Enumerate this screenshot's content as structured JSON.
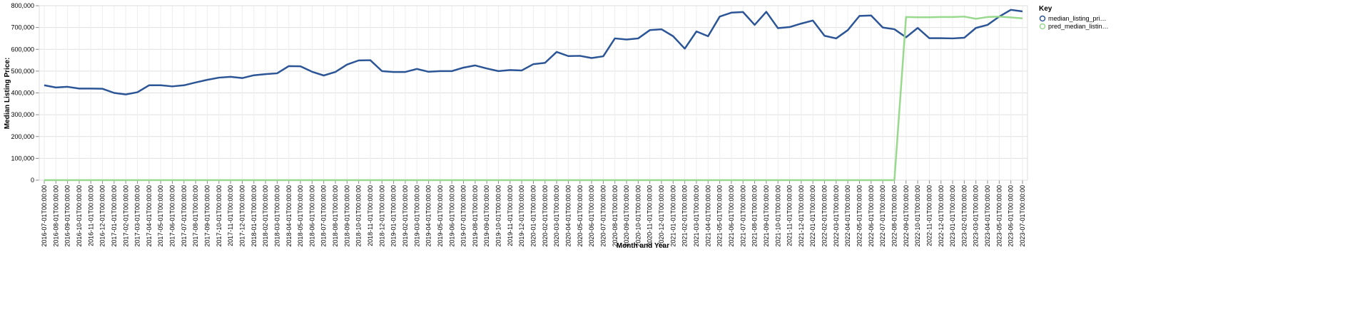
{
  "chart_data": {
    "type": "line",
    "x_label": "Month and Year",
    "y_label": "Median Listing Price:",
    "legend_title": "Key",
    "legend_position": "right",
    "grid": true,
    "categories": [
      "2016-07-01T00:00:00",
      "2016-08-01T00:00:00",
      "2016-09-01T00:00:00",
      "2016-10-01T00:00:00",
      "2016-11-01T00:00:00",
      "2016-12-01T00:00:00",
      "2017-01-01T00:00:00",
      "2017-02-01T00:00:00",
      "2017-03-01T00:00:00",
      "2017-04-01T00:00:00",
      "2017-05-01T00:00:00",
      "2017-06-01T00:00:00",
      "2017-07-01T00:00:00",
      "2017-08-01T00:00:00",
      "2017-09-01T00:00:00",
      "2017-10-01T00:00:00",
      "2017-11-01T00:00:00",
      "2017-12-01T00:00:00",
      "2018-01-01T00:00:00",
      "2018-02-01T00:00:00",
      "2018-03-01T00:00:00",
      "2018-04-01T00:00:00",
      "2018-05-01T00:00:00",
      "2018-06-01T00:00:00",
      "2018-07-01T00:00:00",
      "2018-08-01T00:00:00",
      "2018-09-01T00:00:00",
      "2018-10-01T00:00:00",
      "2018-11-01T00:00:00",
      "2018-12-01T00:00:00",
      "2019-01-01T00:00:00",
      "2019-02-01T00:00:00",
      "2019-03-01T00:00:00",
      "2019-04-01T00:00:00",
      "2019-05-01T00:00:00",
      "2019-06-01T00:00:00",
      "2019-07-01T00:00:00",
      "2019-08-01T00:00:00",
      "2019-09-01T00:00:00",
      "2019-10-01T00:00:00",
      "2019-11-01T00:00:00",
      "2019-12-01T00:00:00",
      "2020-01-01T00:00:00",
      "2020-02-01T00:00:00",
      "2020-03-01T00:00:00",
      "2020-04-01T00:00:00",
      "2020-05-01T00:00:00",
      "2020-06-01T00:00:00",
      "2020-07-01T00:00:00",
      "2020-08-01T00:00:00",
      "2020-09-01T00:00:00",
      "2020-10-01T00:00:00",
      "2020-11-01T00:00:00",
      "2020-12-01T00:00:00",
      "2021-01-01T00:00:00",
      "2021-02-01T00:00:00",
      "2021-03-01T00:00:00",
      "2021-04-01T00:00:00",
      "2021-05-01T00:00:00",
      "2021-06-01T00:00:00",
      "2021-07-01T00:00:00",
      "2021-08-01T00:00:00",
      "2021-09-01T00:00:00",
      "2021-10-01T00:00:00",
      "2021-11-01T00:00:00",
      "2021-12-01T00:00:00",
      "2022-01-01T00:00:00",
      "2022-02-01T00:00:00",
      "2022-03-01T00:00:00",
      "2022-04-01T00:00:00",
      "2022-05-01T00:00:00",
      "2022-06-01T00:00:00",
      "2022-07-01T00:00:00",
      "2022-08-01T00:00:00",
      "2022-09-01T00:00:00",
      "2022-10-01T00:00:00",
      "2022-11-01T00:00:00",
      "2022-12-01T00:00:00",
      "2023-01-01T00:00:00",
      "2023-02-01T00:00:00",
      "2023-03-01T00:00:00",
      "2023-04-01T00:00:00",
      "2023-05-01T00:00:00",
      "2023-06-01T00:00:00",
      "2023-07-01T00:00:00"
    ],
    "series": [
      {
        "name": "median_listing_pri…",
        "color": "#2c5596",
        "values": [
          435000,
          425000,
          428000,
          420000,
          420000,
          419000,
          400000,
          393000,
          403000,
          435000,
          435000,
          430000,
          435000,
          448000,
          460000,
          470000,
          474000,
          468000,
          481000,
          486000,
          490000,
          523000,
          522000,
          497000,
          480000,
          496000,
          530000,
          549000,
          550000,
          500000,
          496000,
          496000,
          510000,
          497000,
          500000,
          500000,
          516000,
          526000,
          512000,
          500000,
          505000,
          503000,
          532000,
          538000,
          588000,
          569000,
          570000,
          560000,
          568000,
          650000,
          645000,
          650000,
          688000,
          692000,
          660000,
          603000,
          682000,
          660000,
          750000,
          768000,
          771000,
          712000,
          772000,
          697000,
          702000,
          718000,
          732000,
          662000,
          650000,
          688000,
          753000,
          755000,
          700000,
          692000,
          655000,
          698000,
          651000,
          651000,
          650000,
          653000,
          698000,
          712000,
          750000,
          781000,
          774000
        ]
      },
      {
        "name": "pred_median_listin…",
        "color": "#98d98e",
        "values": [
          0,
          0,
          0,
          0,
          0,
          0,
          0,
          0,
          0,
          0,
          0,
          0,
          0,
          0,
          0,
          0,
          0,
          0,
          0,
          0,
          0,
          0,
          0,
          0,
          0,
          0,
          0,
          0,
          0,
          0,
          0,
          0,
          0,
          0,
          0,
          0,
          0,
          0,
          0,
          0,
          0,
          0,
          0,
          0,
          0,
          0,
          0,
          0,
          0,
          0,
          0,
          0,
          0,
          0,
          0,
          0,
          0,
          0,
          0,
          0,
          0,
          0,
          0,
          0,
          0,
          0,
          0,
          0,
          0,
          0,
          0,
          0,
          0,
          0,
          748000,
          747000,
          747000,
          748000,
          748000,
          750000,
          740000,
          748000,
          750000,
          746000,
          742000
        ]
      }
    ],
    "ylim": [
      0,
      800000
    ],
    "yticks": [
      0,
      {
        "value": 100000,
        "label": "100,000"
      },
      {
        "value": 200000,
        "label": "200,000"
      },
      {
        "value": 300000,
        "label": "300,000"
      },
      {
        "value": 400000,
        "label": "400,000"
      },
      {
        "value": 500000,
        "label": "500,000"
      },
      {
        "value": 600000,
        "label": "600,000"
      },
      {
        "value": 700000,
        "label": "700,000"
      },
      {
        "value": 800000,
        "label": "800,000"
      }
    ]
  }
}
